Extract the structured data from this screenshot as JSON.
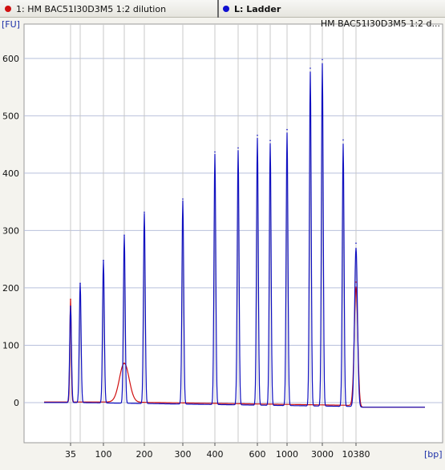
{
  "tabs": [
    {
      "label": "1: HM BAC51I30D3M5  1:2 dilution",
      "color": "#d01010"
    },
    {
      "label": "L: Ladder",
      "color": "#1010d0"
    }
  ],
  "chart_data": {
    "type": "line",
    "title": "HM BAC51I30D3M5  1:2 d...",
    "ylabel": "[FU]",
    "xlabel": "[bp]",
    "ylim": [
      -70,
      660
    ],
    "yticks": [
      0,
      100,
      200,
      300,
      400,
      500,
      600
    ],
    "x_tick_labels": [
      "35",
      "100",
      "200",
      "300",
      "400",
      "600",
      "1000",
      "3000",
      "10380"
    ],
    "ladder_peaks_bp": [
      35,
      50,
      100,
      150,
      200,
      300,
      400,
      500,
      600,
      700,
      1000,
      2000,
      3000,
      7000,
      10380
    ],
    "series": [
      {
        "name": "L: Ladder",
        "color": "#1010c0",
        "peaks": [
          {
            "bp": 35,
            "fu": 168
          },
          {
            "bp": 50,
            "fu": 208
          },
          {
            "bp": 100,
            "fu": 248
          },
          {
            "bp": 150,
            "fu": 292
          },
          {
            "bp": 200,
            "fu": 332
          },
          {
            "bp": 300,
            "fu": 355
          },
          {
            "bp": 400,
            "fu": 437
          },
          {
            "bp": 500,
            "fu": 444
          },
          {
            "bp": 600,
            "fu": 466
          },
          {
            "bp": 700,
            "fu": 457
          },
          {
            "bp": 1000,
            "fu": 476
          },
          {
            "bp": 2000,
            "fu": 583
          },
          {
            "bp": 3000,
            "fu": 598
          },
          {
            "bp": 7000,
            "fu": 458
          },
          {
            "bp": 10380,
            "fu": 278
          }
        ]
      },
      {
        "name": "1: HM BAC51I30D3M5  1:2 dilution",
        "color": "#d01010",
        "peaks": [
          {
            "bp": 35,
            "fu": 180
          },
          {
            "bp": 150,
            "fu": 68
          },
          {
            "bp": 10380,
            "fu": 210
          }
        ]
      }
    ]
  }
}
